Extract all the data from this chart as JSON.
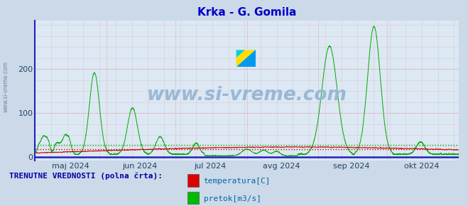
{
  "title": "Krka - G. Gomila",
  "title_color": "#0000cc",
  "fig_bg_color": "#ccd9e8",
  "plot_bg_color": "#dce8f4",
  "yticks": [
    0,
    100,
    200
  ],
  "ymax": 310,
  "ymin": -8,
  "watermark_text": "www.si-vreme.com",
  "watermark_color": "#99b8d4",
  "left_label": "www.si-vreme.com",
  "legend_title": "TRENUTNE VREDNOSTI (polna črta):",
  "legend_items": [
    "temperatura[C]",
    "pretok[m3/s]"
  ],
  "legend_colors": [
    "#dd0000",
    "#00bb00"
  ],
  "x_tick_labels": [
    "maj 2024",
    "jun 2024",
    "jul 2024",
    "avg 2024",
    "sep 2024",
    "okt 2024"
  ],
  "grid_color": "#dd9999",
  "hline_temp": 18,
  "hline_flow": 28,
  "temp_color": "#cc0000",
  "flow_color": "#00aa00",
  "border_color": "#2222bb",
  "spine_color": "#2222bb",
  "n_points": 4416,
  "watermark_icon_colors": [
    "#ffee00",
    "#00aaff"
  ]
}
